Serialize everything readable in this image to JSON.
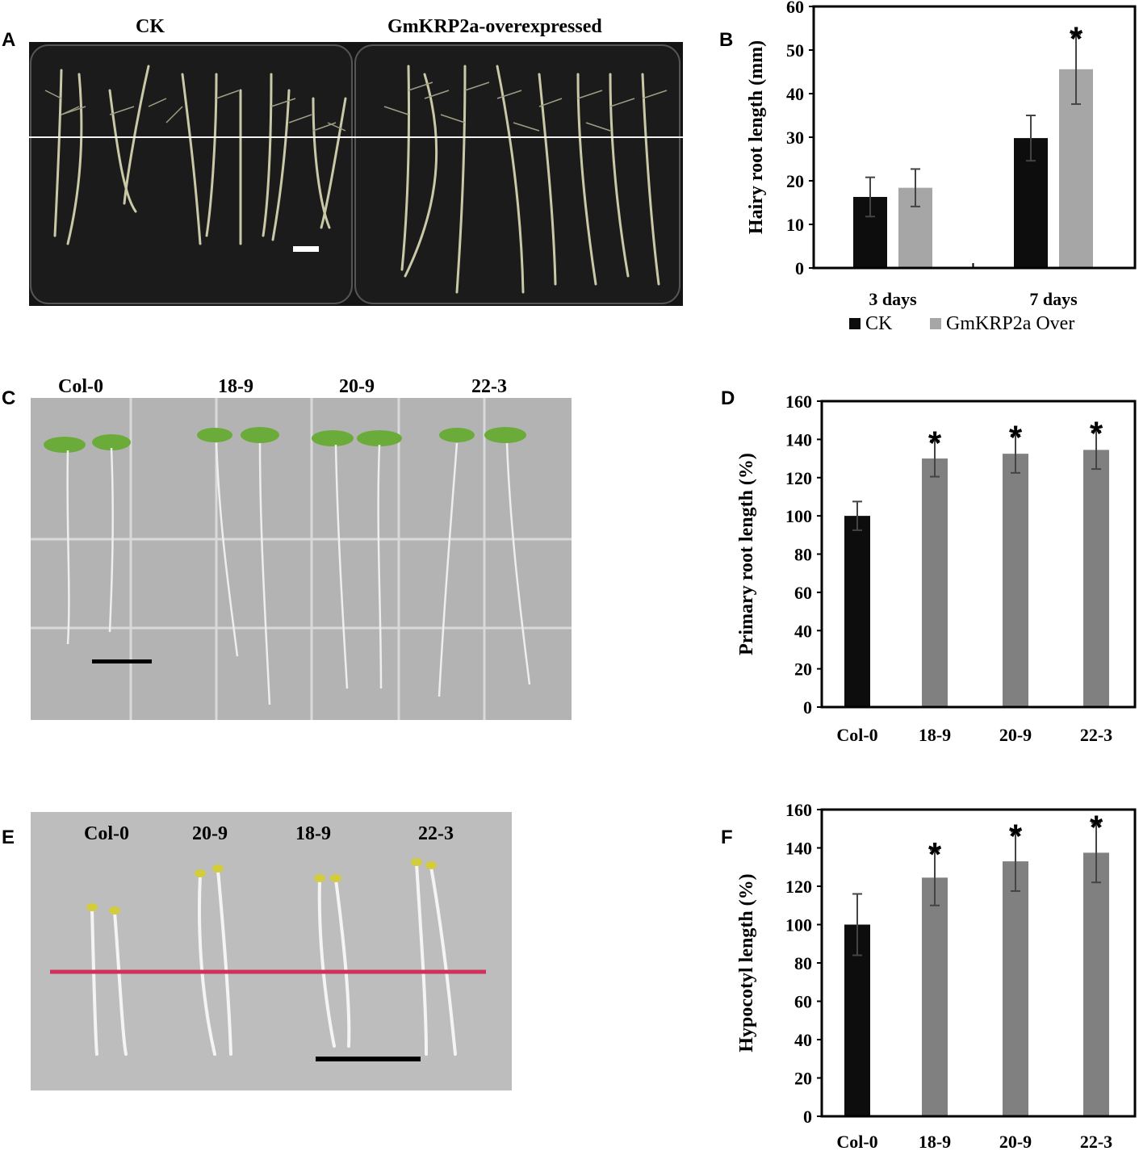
{
  "panels": {
    "A": {
      "letter": "A",
      "labels": [
        "CK",
        "GmKRP2a-overexpressed"
      ]
    },
    "C": {
      "letter": "C",
      "labels": [
        "Col-0",
        "18-9",
        "20-9",
        "22-3"
      ]
    },
    "E": {
      "letter": "E",
      "labels": [
        "Col-0",
        "20-9",
        "18-9",
        "22-3"
      ]
    },
    "B": {
      "letter": "B"
    },
    "D": {
      "letter": "D"
    },
    "F": {
      "letter": "F"
    }
  },
  "colors": {
    "black_bar": "#0d0d0d",
    "light_gray_bar": "#a6a6a6",
    "gray_bar": "#808080",
    "axis": "#000000",
    "photo_dark": "#141414",
    "photo_gray": "#bcbcbc",
    "red_line": "#d0315a"
  },
  "chart_data": [
    {
      "panel": "B",
      "type": "bar",
      "categories": [
        "3 days",
        "7 days"
      ],
      "series": [
        {
          "name": "CK",
          "values": [
            16.3,
            29.8
          ],
          "errors": [
            4.5,
            5.2
          ],
          "color": "#0d0d0d"
        },
        {
          "name": "GmKRP2a Over",
          "values": [
            18.4,
            45.6
          ],
          "errors": [
            4.3,
            8.0
          ],
          "color": "#a6a6a6"
        }
      ],
      "significance": [
        [
          "",
          ""
        ],
        [
          "",
          "*"
        ]
      ],
      "ylabel": "Hairy root length (mm)",
      "ylim": [
        0,
        60
      ],
      "yticks": [
        "0",
        "10",
        "20",
        "30",
        "40",
        "50",
        "60"
      ],
      "legend": "bottom",
      "grid": false
    },
    {
      "panel": "D",
      "type": "bar",
      "categories": [
        "Col-0",
        "18-9",
        "20-9",
        "22-3"
      ],
      "values": [
        100,
        130,
        132.5,
        134.5
      ],
      "errors": [
        7.5,
        9.5,
        10,
        10
      ],
      "colors": [
        "#0d0d0d",
        "#808080",
        "#808080",
        "#808080"
      ],
      "significance": [
        "",
        "*",
        "*",
        "*"
      ],
      "ylabel": "Primary root length (%)",
      "ylim": [
        0,
        160
      ],
      "yticks": [
        "0",
        "20",
        "40",
        "60",
        "80",
        "100",
        "120",
        "140",
        "160"
      ],
      "grid": false
    },
    {
      "panel": "F",
      "type": "bar",
      "categories": [
        "Col-0",
        "18-9",
        "20-9",
        "22-3"
      ],
      "values": [
        100,
        124.5,
        133,
        137.5
      ],
      "errors": [
        16,
        14.5,
        15.5,
        15.5
      ],
      "colors": [
        "#0d0d0d",
        "#808080",
        "#808080",
        "#808080"
      ],
      "significance": [
        "",
        "*",
        "*",
        "*"
      ],
      "ylabel": "Hypocotyl length (%)",
      "ylim": [
        0,
        160
      ],
      "yticks": [
        "0",
        "20",
        "40",
        "60",
        "80",
        "100",
        "120",
        "140",
        "160"
      ],
      "grid": false
    }
  ]
}
